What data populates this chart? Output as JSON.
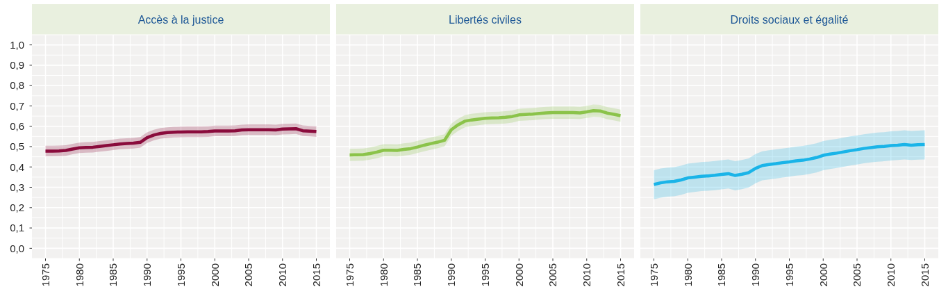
{
  "chart_data": [
    {
      "type": "line",
      "title": "Accès à la justice",
      "x": [
        1975,
        1976,
        1977,
        1978,
        1979,
        1980,
        1981,
        1982,
        1983,
        1984,
        1985,
        1986,
        1987,
        1988,
        1989,
        1990,
        1991,
        1992,
        1993,
        1994,
        1995,
        1996,
        1997,
        1998,
        1999,
        2000,
        2001,
        2002,
        2003,
        2004,
        2005,
        2006,
        2007,
        2008,
        2009,
        2010,
        2011,
        2012,
        2013,
        2014,
        2015
      ],
      "series": [
        {
          "color": "#8a0b3c",
          "values": [
            0.478,
            0.478,
            0.479,
            0.481,
            0.488,
            0.494,
            0.496,
            0.497,
            0.501,
            0.505,
            0.509,
            0.513,
            0.515,
            0.517,
            0.521,
            0.544,
            0.557,
            0.565,
            0.569,
            0.571,
            0.572,
            0.573,
            0.573,
            0.573,
            0.574,
            0.577,
            0.577,
            0.577,
            0.578,
            0.582,
            0.583,
            0.583,
            0.583,
            0.583,
            0.582,
            0.586,
            0.587,
            0.588,
            0.578,
            0.576,
            0.574
          ],
          "lower": [
            0.452,
            0.452,
            0.453,
            0.455,
            0.462,
            0.468,
            0.47,
            0.471,
            0.475,
            0.479,
            0.483,
            0.487,
            0.489,
            0.491,
            0.495,
            0.518,
            0.531,
            0.539,
            0.543,
            0.545,
            0.546,
            0.547,
            0.547,
            0.547,
            0.548,
            0.551,
            0.551,
            0.551,
            0.552,
            0.556,
            0.557,
            0.557,
            0.557,
            0.557,
            0.556,
            0.56,
            0.561,
            0.562,
            0.552,
            0.55,
            0.548
          ],
          "upper": [
            0.504,
            0.504,
            0.505,
            0.507,
            0.514,
            0.52,
            0.522,
            0.523,
            0.527,
            0.531,
            0.535,
            0.539,
            0.541,
            0.543,
            0.547,
            0.57,
            0.583,
            0.591,
            0.595,
            0.597,
            0.598,
            0.599,
            0.599,
            0.599,
            0.6,
            0.603,
            0.603,
            0.603,
            0.604,
            0.608,
            0.609,
            0.609,
            0.609,
            0.609,
            0.608,
            0.612,
            0.613,
            0.614,
            0.604,
            0.602,
            0.6
          ]
        }
      ],
      "xlim": [
        1973,
        2017
      ],
      "xticks": [
        1975,
        1980,
        1985,
        1990,
        1995,
        2000,
        2005,
        2010,
        2015
      ],
      "ylim": [
        -0.05,
        1.05
      ],
      "yticks": [
        {
          "value": 0,
          "label": "0,0"
        },
        {
          "value": 0.1,
          "label": "0,1"
        },
        {
          "value": 0.2,
          "label": "0,2"
        },
        {
          "value": 0.3,
          "label": "0,3"
        },
        {
          "value": 0.4,
          "label": "0,4"
        },
        {
          "value": 0.5,
          "label": "0,5"
        },
        {
          "value": 0.6,
          "label": "0,6"
        },
        {
          "value": 0.7,
          "label": "0,7"
        },
        {
          "value": 0.8,
          "label": "0,8"
        },
        {
          "value": 0.9,
          "label": "0,9"
        },
        {
          "value": 1,
          "label": "1,0"
        }
      ],
      "grid": true
    },
    {
      "type": "line",
      "title": "Libertés civiles",
      "x": [
        1975,
        1976,
        1977,
        1978,
        1979,
        1980,
        1981,
        1982,
        1983,
        1984,
        1985,
        1986,
        1987,
        1988,
        1989,
        1990,
        1991,
        1992,
        1993,
        1994,
        1995,
        1996,
        1997,
        1998,
        1999,
        2000,
        2001,
        2002,
        2003,
        2004,
        2005,
        2006,
        2007,
        2008,
        2009,
        2010,
        2011,
        2012,
        2013,
        2014,
        2015
      ],
      "series": [
        {
          "color": "#8bc34a",
          "values": [
            0.459,
            0.46,
            0.461,
            0.466,
            0.473,
            0.482,
            0.482,
            0.481,
            0.486,
            0.49,
            0.498,
            0.507,
            0.515,
            0.522,
            0.531,
            0.583,
            0.607,
            0.625,
            0.631,
            0.635,
            0.639,
            0.641,
            0.642,
            0.644,
            0.648,
            0.656,
            0.658,
            0.66,
            0.663,
            0.666,
            0.667,
            0.667,
            0.667,
            0.667,
            0.666,
            0.671,
            0.677,
            0.675,
            0.665,
            0.659,
            0.652
          ],
          "lower": [
            0.429,
            0.43,
            0.431,
            0.436,
            0.443,
            0.452,
            0.452,
            0.451,
            0.456,
            0.46,
            0.468,
            0.477,
            0.485,
            0.492,
            0.501,
            0.553,
            0.577,
            0.595,
            0.601,
            0.605,
            0.609,
            0.611,
            0.612,
            0.614,
            0.618,
            0.626,
            0.628,
            0.63,
            0.633,
            0.636,
            0.637,
            0.637,
            0.637,
            0.637,
            0.636,
            0.641,
            0.647,
            0.645,
            0.635,
            0.629,
            0.622
          ],
          "upper": [
            0.489,
            0.49,
            0.491,
            0.496,
            0.503,
            0.512,
            0.512,
            0.511,
            0.516,
            0.52,
            0.528,
            0.537,
            0.545,
            0.552,
            0.561,
            0.613,
            0.637,
            0.655,
            0.661,
            0.665,
            0.669,
            0.671,
            0.672,
            0.674,
            0.678,
            0.686,
            0.688,
            0.69,
            0.693,
            0.696,
            0.697,
            0.697,
            0.697,
            0.697,
            0.696,
            0.701,
            0.707,
            0.705,
            0.695,
            0.689,
            0.682
          ]
        }
      ],
      "xlim": [
        1973,
        2017
      ],
      "xticks": [
        1975,
        1980,
        1985,
        1990,
        1995,
        2000,
        2005,
        2010,
        2015
      ],
      "ylim": [
        -0.05,
        1.05
      ],
      "yticks": [
        0,
        0.1,
        0.2,
        0.3,
        0.4,
        0.5,
        0.6,
        0.7,
        0.8,
        0.9,
        1
      ],
      "grid": true,
      "tick_labels": "x"
    },
    {
      "type": "line",
      "title": "Droits sociaux et égalité",
      "x": [
        1975,
        1976,
        1977,
        1978,
        1979,
        1980,
        1981,
        1982,
        1983,
        1984,
        1985,
        1986,
        1987,
        1988,
        1989,
        1990,
        1991,
        1992,
        1993,
        1994,
        1995,
        1996,
        1997,
        1998,
        1999,
        2000,
        2001,
        2002,
        2003,
        2004,
        2005,
        2006,
        2007,
        2008,
        2009,
        2010,
        2011,
        2012,
        2013,
        2014,
        2015
      ],
      "series": [
        {
          "color": "#1ab4e8",
          "values": [
            0.314,
            0.322,
            0.327,
            0.329,
            0.336,
            0.346,
            0.35,
            0.354,
            0.356,
            0.359,
            0.363,
            0.367,
            0.358,
            0.364,
            0.372,
            0.393,
            0.407,
            0.412,
            0.416,
            0.421,
            0.425,
            0.43,
            0.433,
            0.439,
            0.446,
            0.457,
            0.463,
            0.468,
            0.474,
            0.48,
            0.485,
            0.491,
            0.495,
            0.499,
            0.501,
            0.505,
            0.507,
            0.51,
            0.507,
            0.509,
            0.51
          ],
          "lower": [
            0.241,
            0.249,
            0.254,
            0.256,
            0.263,
            0.273,
            0.277,
            0.281,
            0.283,
            0.286,
            0.29,
            0.294,
            0.285,
            0.291,
            0.299,
            0.32,
            0.334,
            0.339,
            0.343,
            0.348,
            0.352,
            0.357,
            0.36,
            0.366,
            0.373,
            0.384,
            0.39,
            0.395,
            0.401,
            0.407,
            0.412,
            0.418,
            0.422,
            0.426,
            0.428,
            0.432,
            0.434,
            0.437,
            0.434,
            0.436,
            0.437
          ],
          "upper": [
            0.384,
            0.392,
            0.397,
            0.399,
            0.406,
            0.416,
            0.42,
            0.424,
            0.426,
            0.429,
            0.433,
            0.437,
            0.428,
            0.434,
            0.442,
            0.463,
            0.477,
            0.482,
            0.486,
            0.491,
            0.495,
            0.5,
            0.503,
            0.509,
            0.516,
            0.527,
            0.533,
            0.538,
            0.544,
            0.55,
            0.555,
            0.561,
            0.565,
            0.569,
            0.571,
            0.575,
            0.577,
            0.58,
            0.577,
            0.579,
            0.58
          ]
        }
      ],
      "xlim": [
        1973,
        2017
      ],
      "xticks": [
        1975,
        1980,
        1985,
        1990,
        1995,
        2000,
        2005,
        2010,
        2015
      ],
      "ylim": [
        -0.05,
        1.05
      ],
      "yticks": [
        0,
        0.1,
        0.2,
        0.3,
        0.4,
        0.5,
        0.6,
        0.7,
        0.8,
        0.9,
        1
      ],
      "grid": true,
      "tick_labels": "x"
    }
  ]
}
